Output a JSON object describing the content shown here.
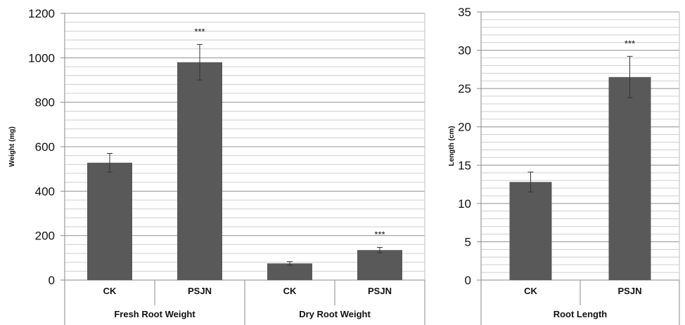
{
  "chart_data": [
    {
      "type": "bar",
      "ylabel": "Weight (mg)",
      "ylim": [
        0,
        1200
      ],
      "yticks": [
        "0",
        "200",
        "400",
        "600",
        "800",
        "1000",
        "1200"
      ],
      "minor_grid_step": 40,
      "groups": [
        "Fresh Root Weight",
        "Dry Root Weight"
      ],
      "bars": [
        {
          "group": "Fresh Root Weight",
          "category": "CK",
          "value": 528,
          "error": 42,
          "sig": ""
        },
        {
          "group": "Fresh Root Weight",
          "category": "PSJN",
          "value": 980,
          "error": 80,
          "sig": "***"
        },
        {
          "group": "Dry Root Weight",
          "category": "CK",
          "value": 75,
          "error": 8,
          "sig": ""
        },
        {
          "group": "Dry Root Weight",
          "category": "PSJN",
          "value": 135,
          "error": 12,
          "sig": "***"
        }
      ],
      "bar_color": "#595959"
    },
    {
      "type": "bar",
      "ylabel": "Length (cm)",
      "ylim": [
        0,
        35
      ],
      "yticks": [
        "0",
        "5",
        "10",
        "15",
        "20",
        "25",
        "30",
        "35"
      ],
      "minor_grid_step": 1,
      "groups": [
        "Root Length"
      ],
      "bars": [
        {
          "group": "Root Length",
          "category": "CK",
          "value": 12.8,
          "error": 1.3,
          "sig": ""
        },
        {
          "group": "Root Length",
          "category": "PSJN",
          "value": 26.5,
          "error": 2.7,
          "sig": "***"
        }
      ],
      "bar_color": "#595959"
    }
  ]
}
